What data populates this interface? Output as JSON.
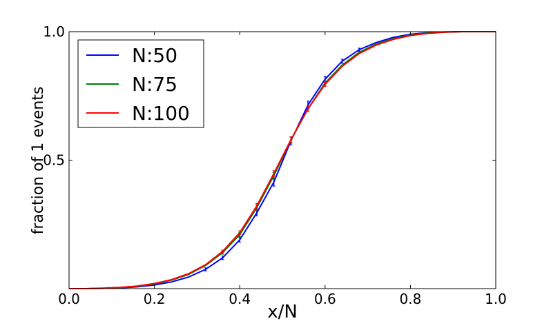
{
  "chart_data": {
    "type": "line",
    "xlabel": "x/N",
    "ylabel": "fraction of 1 events",
    "xlim": [
      0.0,
      1.0
    ],
    "ylim": [
      0.0,
      1.0
    ],
    "x_ticks": [
      "0.0",
      "0.2",
      "0.4",
      "0.6",
      "0.8",
      "1.0"
    ],
    "y_ticks": [
      "0.5",
      "1.0"
    ],
    "grid": false,
    "legend_position": "top-left",
    "series": [
      {
        "name": "N:50",
        "color": "#0000ff",
        "x": [
          0.0,
          0.04,
          0.08,
          0.12,
          0.16,
          0.2,
          0.24,
          0.28,
          0.32,
          0.36,
          0.4,
          0.44,
          0.48,
          0.52,
          0.56,
          0.6,
          0.64,
          0.68,
          0.72,
          0.76,
          0.8,
          0.84,
          0.88,
          0.92,
          0.96,
          1.0
        ],
        "y": [
          0.0,
          0.0,
          0.001,
          0.003,
          0.007,
          0.014,
          0.026,
          0.045,
          0.075,
          0.12,
          0.19,
          0.295,
          0.415,
          0.575,
          0.715,
          0.815,
          0.885,
          0.93,
          0.958,
          0.978,
          0.99,
          0.996,
          0.999,
          1.0,
          1.0,
          1.0
        ],
        "err": [
          0,
          0,
          0,
          0,
          0,
          0,
          0,
          0,
          0.006,
          0.007,
          0.009,
          0.012,
          0.016,
          0.016,
          0.015,
          0.012,
          0.008,
          0.006,
          0,
          0,
          0,
          0,
          0,
          0,
          0,
          0
        ]
      },
      {
        "name": "N:75",
        "color": "#008000",
        "x": [
          0.0,
          0.04,
          0.08,
          0.12,
          0.16,
          0.2,
          0.24,
          0.28,
          0.32,
          0.36,
          0.4,
          0.44,
          0.48,
          0.52,
          0.56,
          0.6,
          0.64,
          0.68,
          0.72,
          0.76,
          0.8,
          0.84,
          0.88,
          0.92,
          0.96,
          1.0
        ],
        "y": [
          0.0,
          0.0,
          0.001,
          0.004,
          0.009,
          0.018,
          0.033,
          0.055,
          0.09,
          0.14,
          0.21,
          0.315,
          0.44,
          0.578,
          0.7,
          0.8,
          0.87,
          0.92,
          0.952,
          0.973,
          0.987,
          0.995,
          0.998,
          1.0,
          1.0,
          1.0
        ],
        "err": [
          0,
          0,
          0,
          0,
          0,
          0,
          0,
          0,
          0,
          0.006,
          0.008,
          0.01,
          0.012,
          0.012,
          0.01,
          0.008,
          0,
          0,
          0,
          0,
          0,
          0,
          0,
          0,
          0,
          0
        ]
      },
      {
        "name": "N:100",
        "color": "#ff0000",
        "x": [
          0.0,
          0.04,
          0.08,
          0.12,
          0.16,
          0.2,
          0.24,
          0.28,
          0.32,
          0.36,
          0.4,
          0.44,
          0.48,
          0.52,
          0.56,
          0.6,
          0.64,
          0.68,
          0.72,
          0.76,
          0.8,
          0.84,
          0.88,
          0.92,
          0.96,
          1.0
        ],
        "y": [
          0.0,
          0.0,
          0.002,
          0.005,
          0.01,
          0.02,
          0.035,
          0.058,
          0.093,
          0.145,
          0.218,
          0.322,
          0.448,
          0.58,
          0.7,
          0.795,
          0.865,
          0.915,
          0.948,
          0.97,
          0.985,
          0.993,
          0.998,
          1.0,
          1.0,
          1.0
        ],
        "err": [
          0,
          0,
          0,
          0,
          0,
          0,
          0,
          0,
          0,
          0.005,
          0.007,
          0.009,
          0.011,
          0.011,
          0.01,
          0.008,
          0,
          0,
          0,
          0,
          0,
          0,
          0,
          0,
          0,
          0
        ]
      }
    ]
  }
}
